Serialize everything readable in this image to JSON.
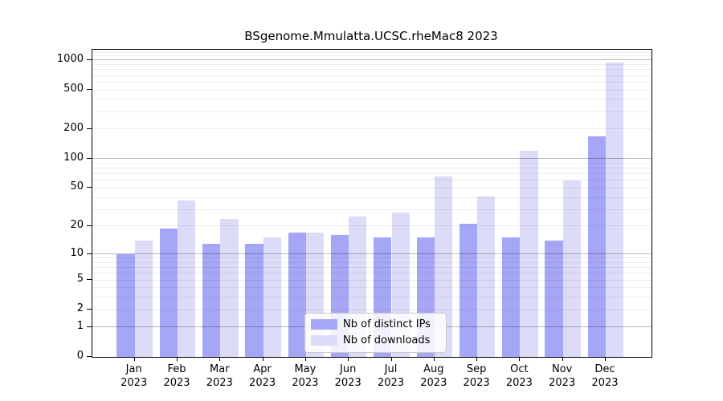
{
  "title": "BSgenome.Mmulatta.UCSC.rheMac8 2023",
  "chart_data": {
    "type": "bar",
    "title": "BSgenome.Mmulatta.UCSC.rheMac8 2023",
    "categories": [
      "Jan",
      "Feb",
      "Mar",
      "Apr",
      "May",
      "Jun",
      "Jul",
      "Aug",
      "Sep",
      "Oct",
      "Nov",
      "Dec"
    ],
    "year_label": "2023",
    "series": [
      {
        "name": "Nb of distinct IPs",
        "color": "#a6a6f6",
        "values": [
          10,
          19,
          13,
          13,
          17,
          16,
          15,
          15,
          21,
          15,
          14,
          168
        ]
      },
      {
        "name": "Nb of downloads",
        "color": "#dcdcf9",
        "values": [
          14,
          37,
          24,
          15,
          17,
          25,
          28,
          66,
          41,
          120,
          60,
          940
        ]
      }
    ],
    "xlabel": "",
    "ylabel": "",
    "y_scale": "log10(1+y)",
    "ylim": [
      0,
      1274
    ],
    "y_ticks": [
      0,
      1,
      2,
      5,
      10,
      20,
      50,
      100,
      200,
      500,
      1000
    ],
    "grid": {
      "major_values": [
        1,
        10,
        100,
        1000
      ],
      "minor_values": [
        2,
        3,
        4,
        5,
        6,
        7,
        8,
        9,
        20,
        30,
        40,
        50,
        60,
        70,
        80,
        90,
        200,
        300,
        400,
        500,
        600,
        700,
        800,
        900,
        1100,
        1200
      ],
      "on": true
    },
    "legend_position": "inside-bottom-center"
  }
}
